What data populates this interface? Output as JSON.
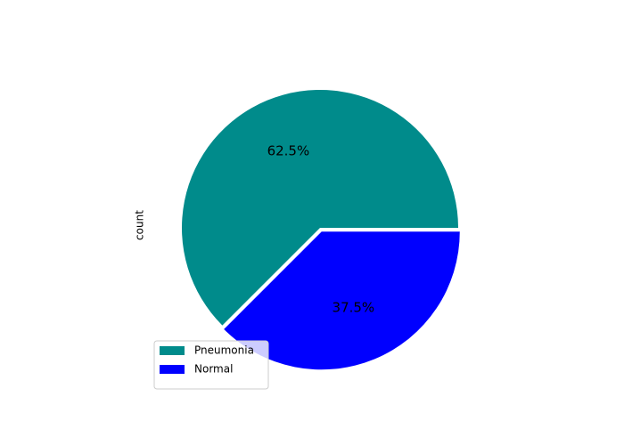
{
  "chart_data": {
    "type": "pie",
    "ylabel": "count",
    "categories": [
      "Pneumonia",
      "Normal"
    ],
    "values": [
      62.5,
      37.5
    ],
    "value_labels": [
      "62.5%",
      "37.5%"
    ],
    "colors": [
      "#008b8b",
      "#0000ff"
    ],
    "explode": [
      0,
      0.03
    ],
    "startangle": 0,
    "legend": "lower left"
  }
}
